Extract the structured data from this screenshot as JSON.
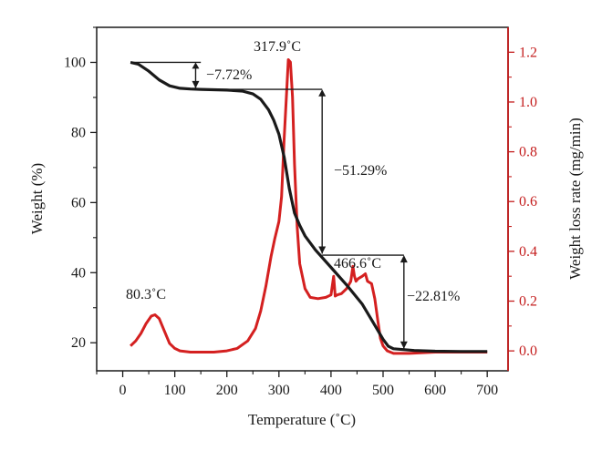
{
  "chart_data": {
    "type": "line",
    "xlabel": "Temperature (˚C)",
    "ylabel": "Weight (%)",
    "y2label": "Weight loss rate (mg/min)",
    "xlim": [
      -50,
      740
    ],
    "ylim": [
      12,
      110
    ],
    "y2lim": [
      -0.08,
      1.3
    ],
    "x_ticks": [
      0,
      100,
      200,
      300,
      400,
      500,
      600,
      700
    ],
    "y_ticks": [
      20,
      40,
      60,
      80,
      100
    ],
    "y2_ticks": [
      0.0,
      0.2,
      0.4,
      0.6,
      0.8,
      1.0,
      1.2
    ],
    "x_tick_labels": [
      "0",
      "100",
      "200",
      "300",
      "400",
      "500",
      "600",
      "700"
    ],
    "y_tick_labels": [
      "20",
      "40",
      "60",
      "80",
      "100"
    ],
    "y2_tick_labels": [
      "0.0",
      "0.2",
      "0.4",
      "0.6",
      "0.8",
      "1.0",
      "1.2"
    ],
    "grid": false,
    "colors": {
      "weight": "#1a1a1a",
      "rate": "#d42020",
      "axis_right": "#c41e1e"
    },
    "series": [
      {
        "axis": "left",
        "x": [
          15,
          30,
          50,
          70,
          90,
          110,
          130,
          150,
          200,
          230,
          250,
          265,
          280,
          290,
          300,
          310,
          320,
          330,
          340,
          350,
          370,
          400,
          430,
          460,
          480,
          500,
          510,
          520,
          560,
          600,
          650,
          700
        ],
        "values": [
          100,
          99.5,
          97.5,
          95,
          93.3,
          92.6,
          92.4,
          92.3,
          92.1,
          91.8,
          91,
          89.5,
          86.5,
          83.5,
          79.5,
          73,
          64,
          57,
          53.5,
          50.5,
          46.5,
          41.5,
          36.5,
          31,
          26,
          21,
          19,
          18.3,
          17.8,
          17.6,
          17.5,
          17.5
        ]
      },
      {
        "axis": "right",
        "x": [
          15,
          25,
          35,
          45,
          55,
          62,
          70,
          80,
          90,
          100,
          110,
          130,
          150,
          175,
          200,
          220,
          240,
          255,
          265,
          275,
          285,
          292,
          300,
          305,
          310,
          315,
          318,
          322,
          326,
          330,
          335,
          340,
          350,
          360,
          375,
          390,
          400,
          405,
          408,
          412,
          420,
          430,
          438,
          442,
          445,
          448,
          452,
          460,
          466,
          470,
          478,
          484,
          490,
          495,
          500,
          508,
          520,
          550,
          600,
          650,
          700
        ],
        "values": [
          0.02,
          0.04,
          0.07,
          0.11,
          0.14,
          0.145,
          0.13,
          0.08,
          0.03,
          0.01,
          0.0,
          -0.005,
          -0.005,
          -0.005,
          0.0,
          0.01,
          0.04,
          0.09,
          0.16,
          0.26,
          0.38,
          0.45,
          0.52,
          0.62,
          0.85,
          1.05,
          1.17,
          1.16,
          1.02,
          0.75,
          0.5,
          0.35,
          0.25,
          0.215,
          0.21,
          0.215,
          0.225,
          0.3,
          0.22,
          0.225,
          0.23,
          0.25,
          0.28,
          0.34,
          0.3,
          0.28,
          0.29,
          0.3,
          0.31,
          0.28,
          0.27,
          0.21,
          0.12,
          0.05,
          0.02,
          0.0,
          -0.01,
          -0.01,
          -0.005,
          -0.005,
          -0.005
        ]
      }
    ],
    "annotations": {
      "peak1": "80.3˚C",
      "peak2": "317.9˚C",
      "peak3": "466.6˚C",
      "loss1": "−7.72%",
      "loss2": "−51.29%",
      "loss3": "−22.81%"
    }
  }
}
